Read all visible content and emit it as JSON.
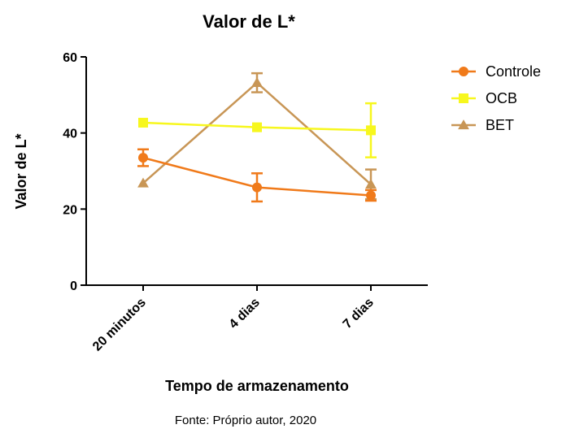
{
  "chart_data": {
    "type": "line",
    "title": "Valor de L*",
    "xlabel": "Tempo de armazenamento",
    "ylabel": "Valor de L*",
    "categories": [
      "20 minutos",
      "4 dias",
      "7 dias"
    ],
    "ylim": [
      0,
      60
    ],
    "yticks": [
      0,
      20,
      40,
      60
    ],
    "grid": false,
    "legend_position": "top-right",
    "series": [
      {
        "name": "Controle",
        "marker": "circle",
        "color": "#F07A1A",
        "values": [
          33.5,
          25.7,
          23.6
        ],
        "errors": [
          2.2,
          3.7,
          1.4
        ]
      },
      {
        "name": "OCB",
        "marker": "square",
        "color": "#F7F71E",
        "values": [
          42.7,
          41.5,
          40.7
        ],
        "errors": [
          0,
          0,
          7.1
        ]
      },
      {
        "name": "BET",
        "marker": "triangle",
        "color": "#C89656",
        "values": [
          26.8,
          53.2,
          26.5
        ],
        "errors": [
          0,
          2.5,
          3.9
        ]
      }
    ],
    "source": "Fonte: Próprio autor, 2020"
  }
}
